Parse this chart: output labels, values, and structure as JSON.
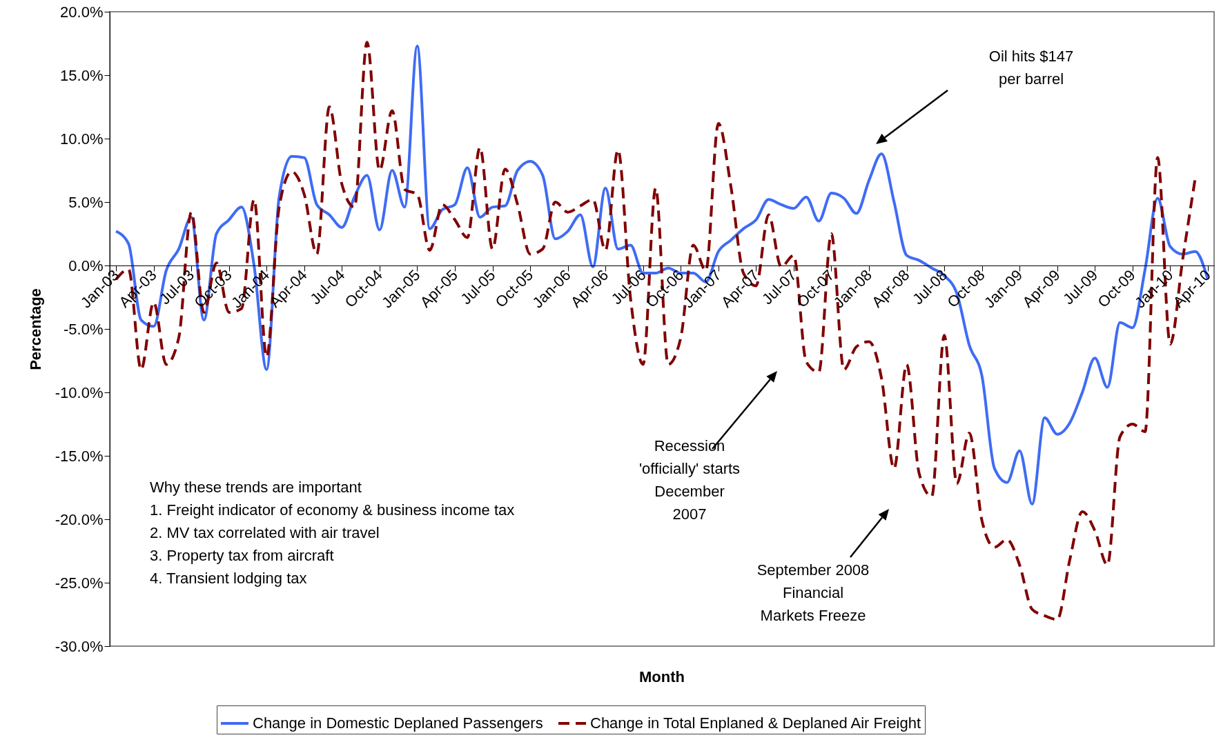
{
  "chart_data": {
    "type": "line",
    "xlabel": "Month",
    "ylabel": "Percentage",
    "categories": [
      "Jan-03",
      null,
      null,
      "Apr-03",
      null,
      null,
      "Jul-03",
      null,
      null,
      "Oct-03",
      null,
      null,
      "Jan-04",
      null,
      null,
      "Apr-04",
      null,
      null,
      "Jul-04",
      null,
      null,
      "Oct-04",
      null,
      null,
      "Jan-05",
      null,
      null,
      "Apr-05",
      null,
      null,
      "Jul-05",
      null,
      null,
      "Oct-05",
      null,
      null,
      "Jan-06",
      null,
      null,
      "Apr-06",
      null,
      null,
      "Jul-06",
      null,
      null,
      "Oct-06",
      null,
      null,
      "Jan-07",
      null,
      null,
      "Apr-07",
      null,
      null,
      "Jul-07",
      null,
      null,
      "Oct-07",
      null,
      null,
      "Jan-08",
      null,
      null,
      "Apr-08",
      null,
      null,
      "Jul-08",
      null,
      null,
      "Oct-08",
      null,
      null,
      "Jan-09",
      null,
      null,
      "Apr-09",
      null,
      null,
      "Jul-09",
      null,
      null,
      "Oct-09",
      null,
      null,
      "Jan-10",
      null,
      null,
      "Apr-10"
    ],
    "series": [
      {
        "name": "Change in Domestic Deplaned Passengers",
        "color": "#3f6cf5",
        "line_style": "solid",
        "values": [
          2.7,
          1.7,
          -4.3,
          -4.8,
          -0.4,
          1.3,
          3.8,
          -4.3,
          2.5,
          3.6,
          4.6,
          0.0,
          -8.2,
          5.4,
          8.6,
          8.5,
          4.8,
          4.0,
          3.0,
          5.4,
          7.1,
          2.8,
          7.5,
          4.6,
          17.3,
          2.9,
          4.4,
          4.8,
          7.7,
          3.8,
          4.6,
          4.7,
          7.5,
          8.2,
          7.1,
          2.1,
          2.7,
          4.0,
          -0.1,
          6.1,
          1.3,
          1.6,
          -0.6,
          -0.6,
          -0.2,
          -0.6,
          -0.6,
          -1.3,
          1.1,
          2.0,
          2.9,
          3.6,
          5.2,
          4.8,
          4.5,
          5.4,
          3.5,
          5.7,
          5.3,
          4.1,
          6.7,
          8.8,
          5.0,
          0.8,
          0.4,
          -0.2,
          -0.8,
          -2.2,
          -6.3,
          -8.7,
          -16.0,
          -17.1,
          -14.6,
          -18.8,
          -12.0,
          -13.3,
          -12.4,
          -10.0,
          -7.3,
          -9.6,
          -4.5,
          -4.9,
          -0.3,
          5.3,
          1.5,
          0.9,
          1.1,
          -1.1
        ]
      },
      {
        "name": "Change in Total Enplaned & Deplaned Air Freight",
        "color": "#800000",
        "line_style": "dashed",
        "values": [
          -1.1,
          -0.3,
          -8.2,
          -2.9,
          -7.8,
          -5.7,
          4.2,
          -3.7,
          0.2,
          -3.7,
          -3.4,
          5.2,
          -7.2,
          4.6,
          7.4,
          5.6,
          0.9,
          12.5,
          6.4,
          4.6,
          17.6,
          7.5,
          12.2,
          6.0,
          5.6,
          1.2,
          4.8,
          3.6,
          2.2,
          9.3,
          1.3,
          7.6,
          4.8,
          0.9,
          1.3,
          5.0,
          4.2,
          4.7,
          5.2,
          1.2,
          9.1,
          -2.6,
          -7.8,
          6.1,
          -7.8,
          -5.7,
          1.6,
          -0.4,
          11.2,
          6.2,
          -0.6,
          -1.6,
          4.0,
          -0.1,
          0.8,
          -7.6,
          -8.4,
          2.5,
          -8.2,
          -6.4,
          -6.0,
          -8.9,
          -16.0,
          -7.8,
          -16.4,
          -18.2,
          -5.5,
          -17.2,
          -13.2,
          -20.1,
          -22.2,
          -21.6,
          -23.6,
          -27.1,
          -27.6,
          -27.9,
          -23.2,
          -19.4,
          -20.9,
          -23.6,
          -13.5,
          -12.5,
          -13.1,
          8.5,
          -6.2,
          0.5,
          6.9,
          null
        ]
      }
    ],
    "ylim": [
      -30,
      20
    ],
    "yticks": [
      {
        "value": -30,
        "label": "-30.0%"
      },
      {
        "value": -25,
        "label": "-25.0%"
      },
      {
        "value": -20,
        "label": "-20.0%"
      },
      {
        "value": -15,
        "label": "-15.0%"
      },
      {
        "value": -10,
        "label": "-10.0%"
      },
      {
        "value": -5,
        "label": "-5.0%"
      },
      {
        "value": 0,
        "label": "0.0%"
      },
      {
        "value": 5,
        "label": "5.0%"
      },
      {
        "value": 10,
        "label": "10.0%"
      },
      {
        "value": 15,
        "label": "15.0%"
      },
      {
        "value": 20,
        "label": "20.0%"
      }
    ],
    "grid": false,
    "legend": "bottom",
    "marker": "none",
    "annotations": [
      "Oil hits $147\nper barrel",
      "Recession\n'officially' starts\nDecember\n2007",
      "September 2008\nFinancial\nMarkets Freeze",
      "Why these trends are important\n1. Freight indicator of economy & business income tax\n2. MV tax correlated with air travel\n3. Property tax from aircraft\n4. Transient lodging tax"
    ]
  }
}
